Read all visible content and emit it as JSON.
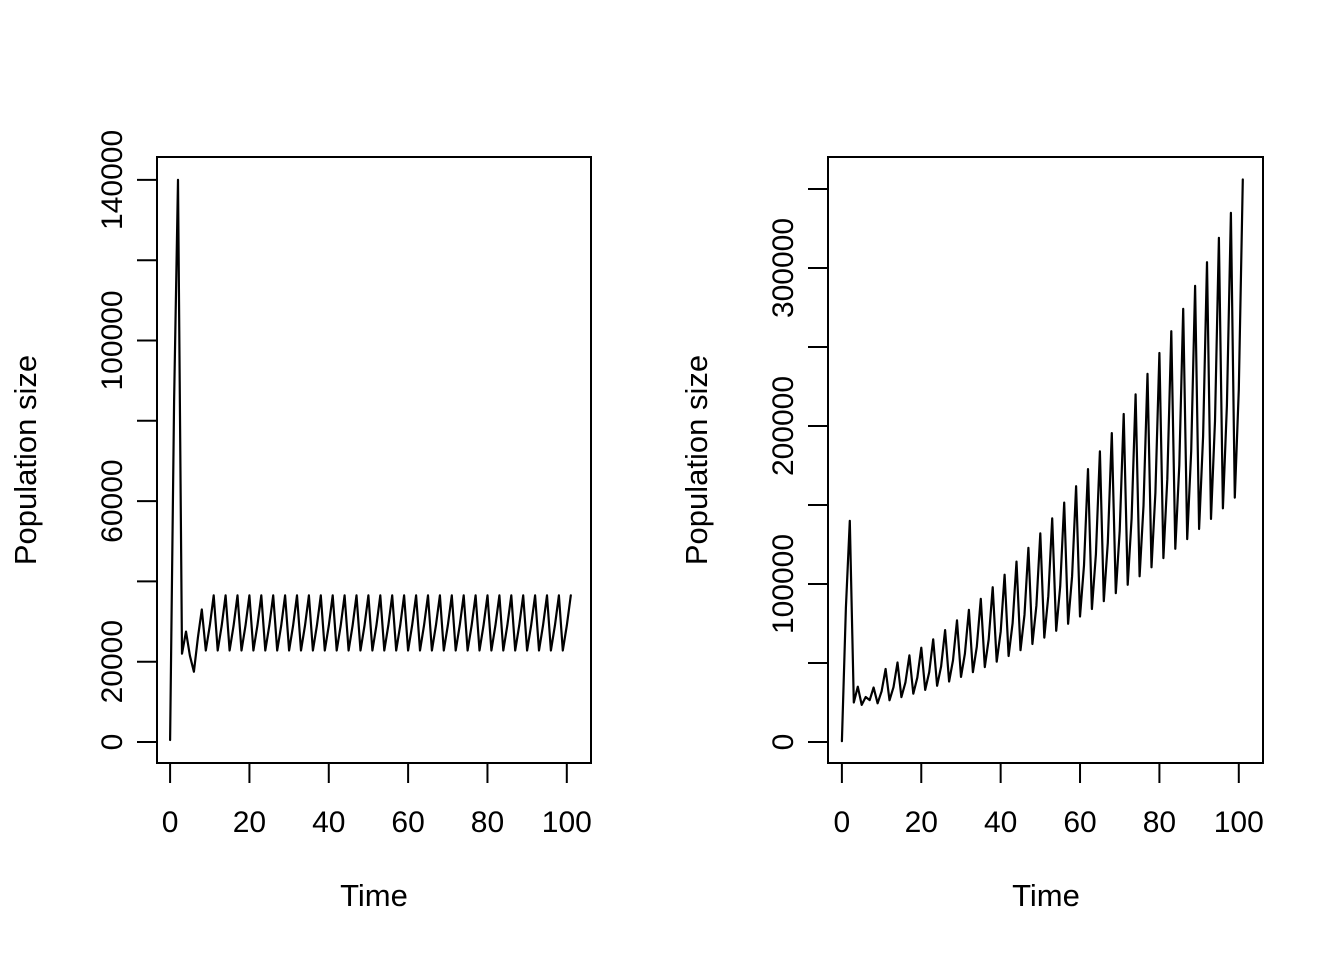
{
  "figure": {
    "background": "#ffffff",
    "line_color": "#000000",
    "text_color": "#000000"
  },
  "chart_data": [
    {
      "type": "line",
      "panel": "left",
      "title": "",
      "xlabel": "Time",
      "ylabel": "Population size",
      "grid": false,
      "legend": "none",
      "x_start": 0,
      "x_step": 1,
      "xlim": [
        -3.3,
        106.1
      ],
      "ylim": [
        -5230,
        145700
      ],
      "x_ticks": {
        "values": [
          0,
          20,
          40,
          60,
          80,
          100
        ],
        "labels": [
          "0",
          "20",
          "40",
          "60",
          "80",
          "100"
        ]
      },
      "y_ticks": {
        "values": [
          0,
          20000,
          40000,
          60000,
          80000,
          100000,
          120000,
          140000
        ],
        "labels": [
          "0",
          "20000",
          "",
          "60000",
          "",
          "100000",
          "",
          "140000"
        ]
      },
      "series": [
        {
          "name": "population size",
          "values": [
            500,
            85000,
            140000,
            22000,
            27500,
            21500,
            17500,
            26000,
            33000,
            22800,
            29000,
            36500,
            22800,
            29000,
            36500,
            22800,
            29000,
            36500,
            22800,
            29000,
            36500,
            22800,
            29000,
            36500,
            22800,
            29000,
            36500,
            22800,
            29000,
            36500,
            22800,
            29000,
            36500,
            22800,
            29000,
            36500,
            22800,
            29000,
            36500,
            22800,
            29000,
            36500,
            22800,
            29000,
            36500,
            22800,
            29000,
            36500,
            22800,
            29000,
            36500,
            22800,
            29000,
            36500,
            22800,
            29000,
            36500,
            22800,
            29000,
            36500,
            22800,
            29000,
            36500,
            22800,
            29000,
            36500,
            22800,
            29000,
            36500,
            22800,
            29000,
            36500,
            22800,
            29000,
            36500,
            22800,
            29000,
            36500,
            22800,
            29000,
            36500,
            22800,
            29000,
            36500,
            22800,
            29000,
            36500,
            22800,
            29000,
            36500,
            22800,
            29000,
            36500,
            22800,
            29000,
            36500,
            22800,
            29000,
            36500,
            22800,
            29000,
            36500
          ]
        }
      ]
    },
    {
      "type": "line",
      "panel": "right",
      "title": "",
      "xlabel": "Time",
      "ylabel": "Population size",
      "grid": false,
      "legend": "none",
      "x_start": 0,
      "x_step": 1,
      "xlim": [
        -3.5,
        106.1
      ],
      "ylim": [
        -13290,
        370250
      ],
      "x_ticks": {
        "values": [
          0,
          20,
          40,
          60,
          80,
          100
        ],
        "labels": [
          "0",
          "20",
          "40",
          "60",
          "80",
          "100"
        ]
      },
      "y_ticks": {
        "values": [
          0,
          50000,
          100000,
          150000,
          200000,
          250000,
          300000,
          350000
        ],
        "labels": [
          "0",
          "",
          "100000",
          "",
          "200000",
          "",
          "300000",
          ""
        ]
      },
      "series": [
        {
          "name": "population size",
          "values": [
            500,
            85000,
            140000,
            25000,
            35000,
            23500,
            28500,
            26500,
            34500,
            24500,
            32100,
            46200,
            26400,
            34700,
            50300,
            28400,
            37600,
            54800,
            30600,
            40700,
            59700,
            33000,
            44100,
            65000,
            35600,
            47800,
            70800,
            38300,
            51700,
            77000,
            41200,
            55900,
            83600,
            44200,
            60300,
            90600,
            47400,
            65000,
            98000,
            50800,
            69900,
            105900,
            54400,
            75100,
            114200,
            58100,
            80600,
            122900,
            62000,
            86300,
            132000,
            66100,
            92300,
            141500,
            70400,
            98500,
            151500,
            74800,
            105000,
            161900,
            79400,
            111800,
            172700,
            84200,
            118800,
            183900,
            89100,
            126100,
            195500,
            94200,
            133600,
            207600,
            99500,
            141400,
            220000,
            104900,
            149400,
            233000,
            110600,
            157700,
            246200,
            116400,
            166300,
            260000,
            122300,
            175100,
            274100,
            128400,
            184200,
            288700,
            134800,
            193500,
            303700,
            141200,
            203100,
            319100,
            147900,
            212900,
            334900,
            154700,
            223100,
            356000
          ]
        }
      ]
    }
  ]
}
